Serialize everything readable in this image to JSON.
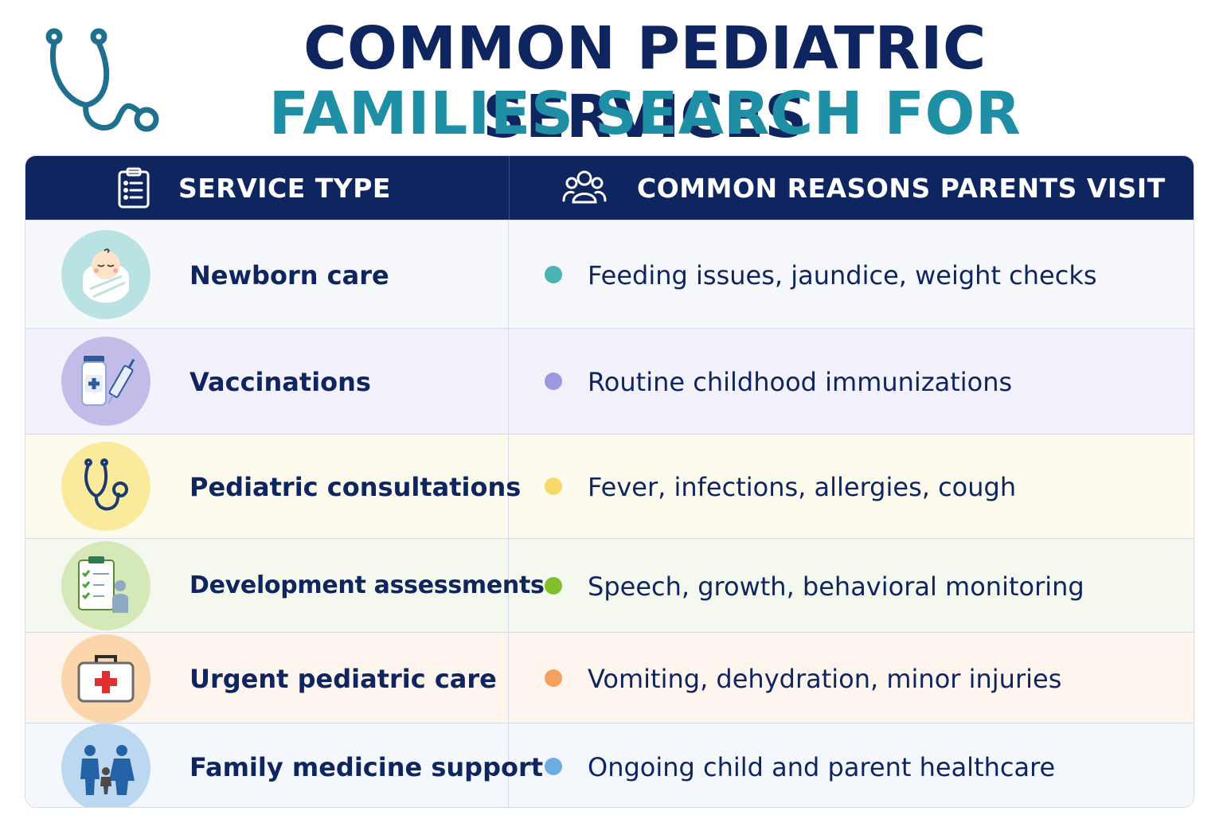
{
  "title": {
    "line1": "COMMON PEDIATRIC SERVICES",
    "line2": "FAMILIES SEARCH FOR",
    "icon": "stethoscope-icon"
  },
  "colors": {
    "navy": "#0f2560",
    "teal": "#1f8fa6"
  },
  "table": {
    "headers": [
      {
        "label": "SERVICE TYPE",
        "icon": "clipboard-icon"
      },
      {
        "label": "COMMON REASONS PARENTS VISIT",
        "icon": "people-icon"
      }
    ],
    "rows": [
      {
        "service": "Newborn care",
        "reason": "Feeding issues, jaundice, weight checks",
        "icon": "baby-icon",
        "row_bg": "#f6f8fc",
        "badge_bg": "#b9e3e3",
        "dot": "#4bb3b3"
      },
      {
        "service": "Vaccinations",
        "reason": "Routine childhood immunizations",
        "icon": "vaccine-icon",
        "row_bg": "#f3f1fc",
        "badge_bg": "#c2bde8",
        "dot": "#9d98dd"
      },
      {
        "service": "Pediatric consultations",
        "reason": "Fever, infections, allergies, cough",
        "icon": "stethoscope-icon",
        "row_bg": "#fdfaee",
        "badge_bg": "#faea9c",
        "dot": "#f6d96b"
      },
      {
        "service": "Development assessments",
        "reason": "Speech, growth, behavioral monitoring",
        "icon": "checklist-icon",
        "row_bg": "#f4f8ee",
        "badge_bg": "#d5e8b8",
        "dot": "#7fbf2a"
      },
      {
        "service": "Urgent pediatric care",
        "reason": "Vomiting, dehydration, minor injuries",
        "icon": "first-aid-kit-icon",
        "row_bg": "#fdf5ee",
        "badge_bg": "#fbd6ad",
        "dot": "#f5a05c"
      },
      {
        "service": "Family medicine support",
        "reason": "Ongoing child and parent healthcare",
        "icon": "family-icon",
        "row_bg": "#f4f8fd",
        "badge_bg": "#bcd8f0",
        "dot": "#6aaee4"
      }
    ]
  }
}
